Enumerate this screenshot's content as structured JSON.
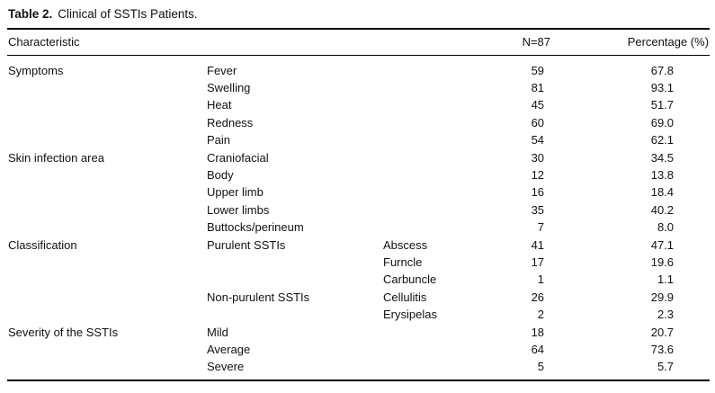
{
  "title": {
    "label": "Table 2.",
    "text": "Clinical of SSTIs Patients."
  },
  "table": {
    "headers": {
      "characteristic": "Characteristic",
      "n": "N=87",
      "percentage": "Percentage (%)"
    },
    "rows": [
      {
        "c1": "Symptoms",
        "c2": "Fever",
        "c3": "",
        "n": "59",
        "pct": "67.8"
      },
      {
        "c1": "",
        "c2": "Swelling",
        "c3": "",
        "n": "81",
        "pct": "93.1"
      },
      {
        "c1": "",
        "c2": "Heat",
        "c3": "",
        "n": "45",
        "pct": "51.7"
      },
      {
        "c1": "",
        "c2": "Redness",
        "c3": "",
        "n": "60",
        "pct": "69.0"
      },
      {
        "c1": "",
        "c2": "Pain",
        "c3": "",
        "n": "54",
        "pct": "62.1"
      },
      {
        "c1": "Skin infection area",
        "c2": "Craniofacial",
        "c3": "",
        "n": "30",
        "pct": "34.5"
      },
      {
        "c1": "",
        "c2": "Body",
        "c3": "",
        "n": "12",
        "pct": "13.8"
      },
      {
        "c1": "",
        "c2": "Upper limb",
        "c3": "",
        "n": "16",
        "pct": "18.4"
      },
      {
        "c1": "",
        "c2": "Lower limbs",
        "c3": "",
        "n": "35",
        "pct": "40.2"
      },
      {
        "c1": "",
        "c2": "Buttocks/perineum",
        "c3": "",
        "n": "7",
        "pct": "8.0"
      },
      {
        "c1": "Classification",
        "c2": "Purulent SSTIs",
        "c3": "Abscess",
        "n": "41",
        "pct": "47.1"
      },
      {
        "c1": "",
        "c2": "",
        "c3": "Furncle",
        "n": "17",
        "pct": "19.6"
      },
      {
        "c1": "",
        "c2": "",
        "c3": "Carbuncle",
        "n": "1",
        "pct": "1.1"
      },
      {
        "c1": "",
        "c2": "Non-purulent SSTIs",
        "c3": "Cellulitis",
        "n": "26",
        "pct": "29.9"
      },
      {
        "c1": "",
        "c2": "",
        "c3": "Erysipelas",
        "n": "2",
        "pct": "2.3"
      },
      {
        "c1": "Severity of the SSTIs",
        "c2": "Mild",
        "c3": "",
        "n": "18",
        "pct": "20.7"
      },
      {
        "c1": "",
        "c2": "Average",
        "c3": "",
        "n": "64",
        "pct": "73.6"
      },
      {
        "c1": "",
        "c2": "Severe",
        "c3": "",
        "n": "5",
        "pct": "5.7"
      }
    ]
  },
  "colors": {
    "background": "#ffffff",
    "text": "#111111",
    "rule": "#000000"
  }
}
